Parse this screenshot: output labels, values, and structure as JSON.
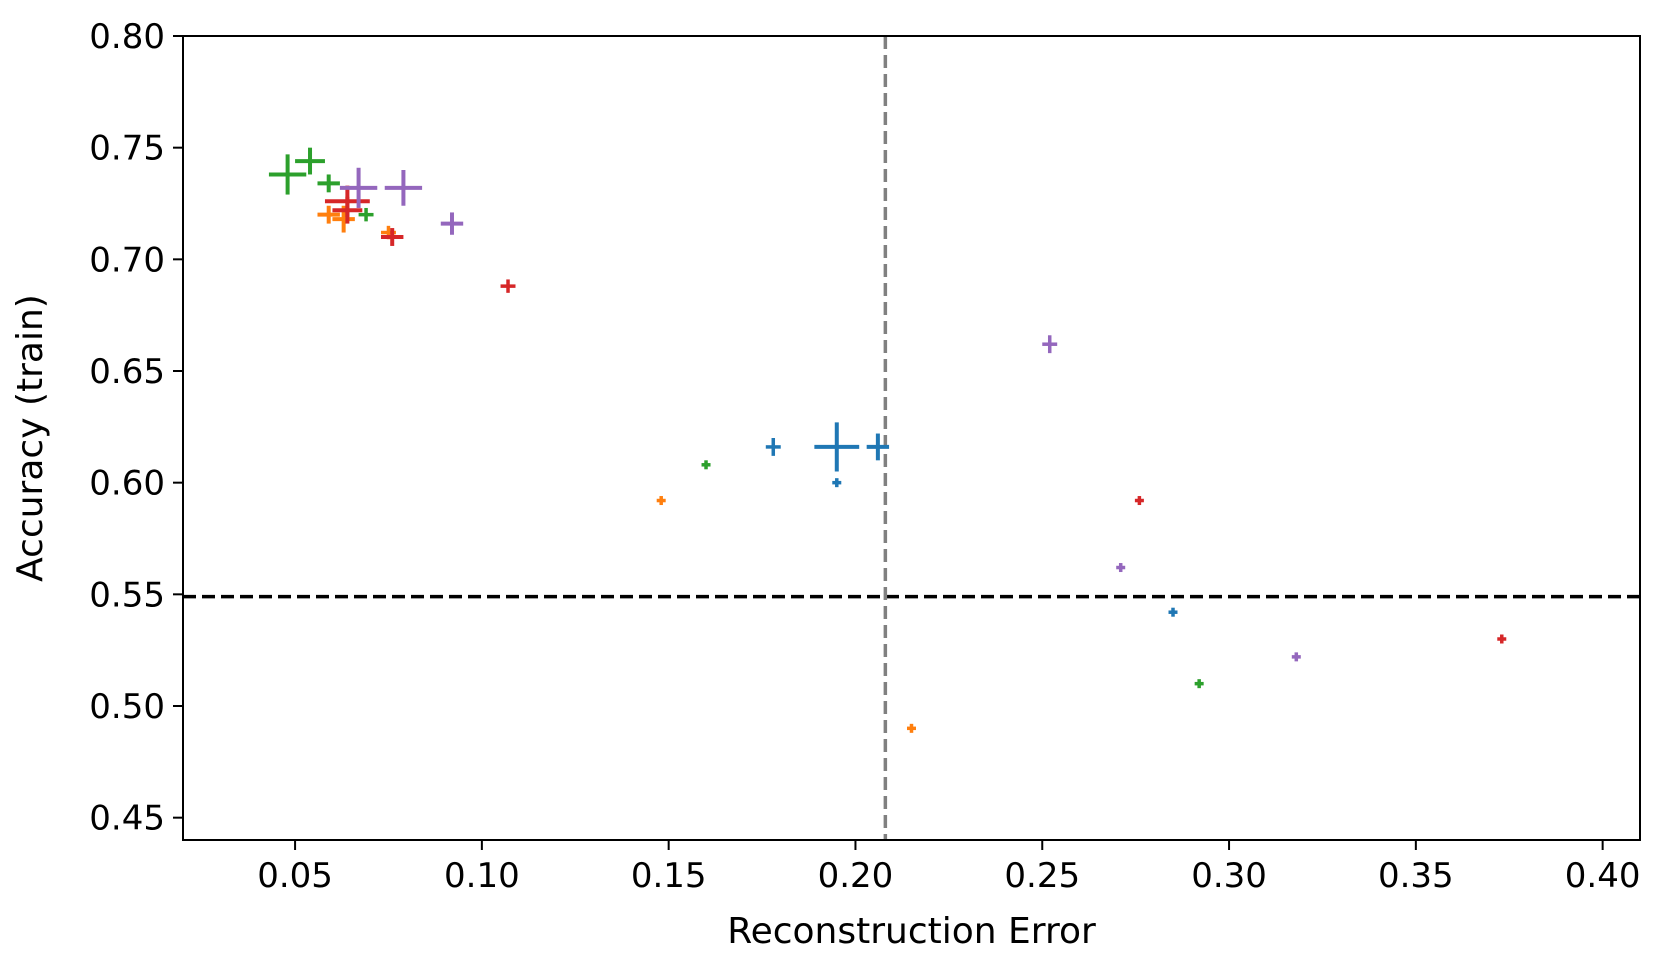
{
  "chart_data": {
    "type": "scatter",
    "title": "",
    "xlabel": "Reconstruction Error",
    "ylabel": "Accuracy (train)",
    "xlim": [
      0.02,
      0.41
    ],
    "ylim": [
      0.44,
      0.8
    ],
    "grid": false,
    "legend": "none",
    "x_ticks": [
      0.05,
      0.1,
      0.15,
      0.2,
      0.25,
      0.3,
      0.35,
      0.4
    ],
    "x_tick_labels": [
      "0.05",
      "0.10",
      "0.15",
      "0.20",
      "0.25",
      "0.30",
      "0.35",
      "0.40"
    ],
    "y_ticks": [
      0.45,
      0.5,
      0.55,
      0.6,
      0.65,
      0.7,
      0.75,
      0.8
    ],
    "y_tick_labels": [
      "0.45",
      "0.50",
      "0.55",
      "0.60",
      "0.65",
      "0.70",
      "0.75",
      "0.80"
    ],
    "marker": "plus",
    "colors": {
      "blue": "#1f77b4",
      "orange": "#ff7f0e",
      "green": "#2ca02c",
      "red": "#d62728",
      "purple": "#9467bd",
      "hline": "#000000",
      "vline": "#808080"
    },
    "reference_lines": [
      {
        "orientation": "horizontal",
        "value": 0.549,
        "style": "dashed",
        "color": "hline"
      },
      {
        "orientation": "vertical",
        "value": 0.208,
        "style": "dashed",
        "color": "vline"
      }
    ],
    "series": [
      {
        "name": "blue",
        "color": "blue",
        "points": [
          {
            "x": 0.178,
            "y": 0.616,
            "xerr": 0.002,
            "yerr": 0.004
          },
          {
            "x": 0.195,
            "y": 0.616,
            "xerr": 0.006,
            "yerr": 0.011
          },
          {
            "x": 0.206,
            "y": 0.616,
            "xerr": 0.003,
            "yerr": 0.006
          },
          {
            "x": 0.195,
            "y": 0.6,
            "xerr": 0.001,
            "yerr": 0.002
          },
          {
            "x": 0.285,
            "y": 0.542,
            "xerr": 0.001,
            "yerr": 0.001
          }
        ]
      },
      {
        "name": "orange",
        "color": "orange",
        "points": [
          {
            "x": 0.059,
            "y": 0.72,
            "xerr": 0.003,
            "yerr": 0.004
          },
          {
            "x": 0.063,
            "y": 0.718,
            "xerr": 0.003,
            "yerr": 0.006
          },
          {
            "x": 0.075,
            "y": 0.712,
            "xerr": 0.002,
            "yerr": 0.003
          },
          {
            "x": 0.148,
            "y": 0.592,
            "xerr": 0.001,
            "yerr": 0.002
          },
          {
            "x": 0.215,
            "y": 0.49,
            "xerr": 0.001,
            "yerr": 0.001
          }
        ]
      },
      {
        "name": "green",
        "color": "green",
        "points": [
          {
            "x": 0.048,
            "y": 0.738,
            "xerr": 0.005,
            "yerr": 0.009
          },
          {
            "x": 0.054,
            "y": 0.744,
            "xerr": 0.004,
            "yerr": 0.006
          },
          {
            "x": 0.059,
            "y": 0.734,
            "xerr": 0.003,
            "yerr": 0.004
          },
          {
            "x": 0.069,
            "y": 0.72,
            "xerr": 0.002,
            "yerr": 0.003
          },
          {
            "x": 0.16,
            "y": 0.608,
            "xerr": 0.001,
            "yerr": 0.002
          },
          {
            "x": 0.292,
            "y": 0.51,
            "xerr": 0.001,
            "yerr": 0.001
          }
        ]
      },
      {
        "name": "red",
        "color": "red",
        "points": [
          {
            "x": 0.064,
            "y": 0.726,
            "xerr": 0.006,
            "yerr": 0.007
          },
          {
            "x": 0.064,
            "y": 0.722,
            "xerr": 0.004,
            "yerr": 0.006
          },
          {
            "x": 0.076,
            "y": 0.71,
            "xerr": 0.003,
            "yerr": 0.004
          },
          {
            "x": 0.107,
            "y": 0.688,
            "xerr": 0.002,
            "yerr": 0.003
          },
          {
            "x": 0.276,
            "y": 0.592,
            "xerr": 0.001,
            "yerr": 0.002
          },
          {
            "x": 0.373,
            "y": 0.53,
            "xerr": 0.001,
            "yerr": 0.001
          }
        ]
      },
      {
        "name": "purple",
        "color": "purple",
        "points": [
          {
            "x": 0.067,
            "y": 0.732,
            "xerr": 0.005,
            "yerr": 0.009
          },
          {
            "x": 0.079,
            "y": 0.732,
            "xerr": 0.005,
            "yerr": 0.008
          },
          {
            "x": 0.092,
            "y": 0.716,
            "xerr": 0.003,
            "yerr": 0.005
          },
          {
            "x": 0.252,
            "y": 0.662,
            "xerr": 0.002,
            "yerr": 0.004
          },
          {
            "x": 0.271,
            "y": 0.562,
            "xerr": 0.001,
            "yerr": 0.002
          },
          {
            "x": 0.318,
            "y": 0.522,
            "xerr": 0.001,
            "yerr": 0.001
          }
        ]
      }
    ]
  }
}
